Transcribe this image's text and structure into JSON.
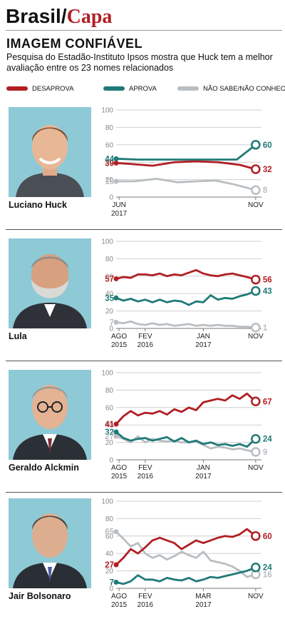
{
  "header": {
    "brand": "Brasil",
    "slash": "/",
    "section": "Capa"
  },
  "title": "IMAGEM CONFIÁVEL",
  "subtitle": "Pesquisa do Estadão-Instituto Ipsos mostra que Huck tem a melhor avaliação entre os 23 nomes relacionados",
  "colors": {
    "desaprova": "#b01f24",
    "aprova": "#1f7a78",
    "nao_sabe": "#b9bec2",
    "photo_bg": "#8ec9d6"
  },
  "legend": [
    {
      "label": "DESAPROVA",
      "color": "#b01f24"
    },
    {
      "label": "APROVA",
      "color": "#1f7a78"
    },
    {
      "label": "NÃO SABE/NÃO CONHECE",
      "color": "#b9bec2"
    }
  ],
  "chart_data": [
    {
      "type": "line",
      "person": "Luciano Huck",
      "ylim": [
        0,
        100
      ],
      "y_ticks": [
        "0",
        "20",
        "40",
        "60",
        "80",
        "100"
      ],
      "x_ticks": [
        {
          "pos": 0.02,
          "lines": [
            "JUN",
            "2017"
          ]
        },
        {
          "pos": 0.96,
          "lines": [
            "NOV"
          ]
        }
      ],
      "series": [
        {
          "name": "DESAPROVA",
          "color": "#b01f24",
          "x": [
            0,
            0.1,
            0.25,
            0.4,
            0.55,
            0.7,
            0.85,
            0.96
          ],
          "values": [
            39,
            38,
            36,
            40,
            41,
            40,
            37,
            32
          ],
          "start_label": "39",
          "end_label": "32"
        },
        {
          "name": "APROVA",
          "color": "#1f7a78",
          "x": [
            0,
            0.15,
            0.3,
            0.45,
            0.6,
            0.75,
            0.83,
            0.96
          ],
          "values": [
            44,
            43,
            43,
            43,
            43,
            43,
            43,
            60
          ],
          "start_label": "44",
          "end_label": "60"
        },
        {
          "name": "NÃO SABE/NÃO CONHECE",
          "color": "#b9bec2",
          "x": [
            0,
            0.12,
            0.28,
            0.42,
            0.55,
            0.68,
            0.8,
            0.96
          ],
          "values": [
            18,
            18,
            21,
            17,
            18,
            19,
            15,
            8
          ],
          "start_label": "18",
          "end_label": "8"
        }
      ]
    },
    {
      "type": "line",
      "person": "Lula",
      "ylim": [
        0,
        100
      ],
      "y_ticks": [
        "0",
        "20",
        "40",
        "60",
        "80",
        "100"
      ],
      "x_ticks": [
        {
          "pos": 0.02,
          "lines": [
            "AGO",
            "2015"
          ]
        },
        {
          "pos": 0.2,
          "lines": [
            "FEV",
            "2016"
          ]
        },
        {
          "pos": 0.6,
          "lines": [
            "JAN",
            "2017"
          ]
        },
        {
          "pos": 0.96,
          "lines": [
            "NOV"
          ]
        }
      ],
      "series": [
        {
          "name": "DESAPROVA",
          "color": "#b01f24",
          "x": [
            0,
            0.05,
            0.1,
            0.15,
            0.2,
            0.25,
            0.3,
            0.35,
            0.4,
            0.45,
            0.5,
            0.55,
            0.6,
            0.65,
            0.7,
            0.75,
            0.8,
            0.85,
            0.9,
            0.96
          ],
          "values": [
            57,
            59,
            58,
            62,
            62,
            61,
            63,
            60,
            62,
            61,
            64,
            67,
            63,
            61,
            60,
            62,
            63,
            61,
            59,
            56
          ],
          "start_label": "57",
          "end_label": "56"
        },
        {
          "name": "APROVA",
          "color": "#1f7a78",
          "x": [
            0,
            0.05,
            0.1,
            0.15,
            0.2,
            0.25,
            0.3,
            0.35,
            0.4,
            0.45,
            0.5,
            0.55,
            0.6,
            0.65,
            0.7,
            0.75,
            0.8,
            0.85,
            0.9,
            0.96
          ],
          "values": [
            35,
            32,
            34,
            31,
            33,
            30,
            33,
            30,
            32,
            31,
            27,
            31,
            30,
            38,
            33,
            35,
            34,
            37,
            39,
            43
          ],
          "start_label": "35",
          "end_label": "43"
        },
        {
          "name": "NÃO SABE/NÃO CONHECE",
          "color": "#b9bec2",
          "x": [
            0,
            0.05,
            0.1,
            0.15,
            0.2,
            0.25,
            0.3,
            0.35,
            0.4,
            0.45,
            0.5,
            0.55,
            0.6,
            0.65,
            0.7,
            0.75,
            0.8,
            0.85,
            0.9,
            0.96
          ],
          "values": [
            7,
            6,
            8,
            5,
            4,
            6,
            4,
            5,
            3,
            4,
            5,
            3,
            4,
            3,
            4,
            3,
            3,
            2,
            2,
            1
          ],
          "start_label": "7",
          "end_label": "1"
        }
      ]
    },
    {
      "type": "line",
      "person": "Geraldo Alckmin",
      "ylim": [
        0,
        100
      ],
      "y_ticks": [
        "0",
        "20",
        "40",
        "60",
        "80",
        "100"
      ],
      "x_ticks": [
        {
          "pos": 0.02,
          "lines": [
            "AGO",
            "2015"
          ]
        },
        {
          "pos": 0.2,
          "lines": [
            "FEV",
            "2016"
          ]
        },
        {
          "pos": 0.6,
          "lines": [
            "JAN",
            "2017"
          ]
        },
        {
          "pos": 0.96,
          "lines": [
            "NOV"
          ]
        }
      ],
      "series": [
        {
          "name": "DESAPROVA",
          "color": "#b01f24",
          "x": [
            0,
            0.05,
            0.1,
            0.15,
            0.2,
            0.25,
            0.3,
            0.35,
            0.4,
            0.45,
            0.5,
            0.55,
            0.6,
            0.65,
            0.7,
            0.75,
            0.8,
            0.85,
            0.9,
            0.96
          ],
          "values": [
            41,
            50,
            56,
            51,
            54,
            53,
            56,
            52,
            58,
            55,
            60,
            57,
            66,
            68,
            70,
            68,
            74,
            70,
            76,
            67
          ],
          "start_label": "41",
          "end_label": "67"
        },
        {
          "name": "APROVA",
          "color": "#1f7a78",
          "x": [
            0,
            0.05,
            0.1,
            0.15,
            0.2,
            0.25,
            0.3,
            0.35,
            0.4,
            0.45,
            0.5,
            0.55,
            0.6,
            0.65,
            0.7,
            0.75,
            0.8,
            0.85,
            0.9,
            0.96
          ],
          "values": [
            32,
            25,
            22,
            24,
            25,
            22,
            24,
            26,
            21,
            25,
            20,
            22,
            18,
            20,
            17,
            18,
            16,
            18,
            15,
            24
          ],
          "start_label": "32",
          "end_label": "24"
        },
        {
          "name": "NÃO SABE/NÃO CONHECE",
          "color": "#b9bec2",
          "x": [
            0,
            0.05,
            0.1,
            0.15,
            0.2,
            0.25,
            0.3,
            0.35,
            0.4,
            0.45,
            0.5,
            0.55,
            0.6,
            0.65,
            0.7,
            0.75,
            0.8,
            0.85,
            0.9,
            0.96
          ],
          "values": [
            27,
            24,
            20,
            27,
            20,
            24,
            22,
            21,
            22,
            20,
            20,
            21,
            17,
            13,
            15,
            14,
            12,
            13,
            11,
            9
          ],
          "start_label": "27",
          "end_label": "9"
        }
      ]
    },
    {
      "type": "line",
      "person": "Jair Bolsonaro",
      "ylim": [
        0,
        100
      ],
      "y_ticks": [
        "0",
        "20",
        "40",
        "60",
        "80",
        "100"
      ],
      "x_ticks": [
        {
          "pos": 0.02,
          "lines": [
            "AGO",
            "2015"
          ]
        },
        {
          "pos": 0.2,
          "lines": [
            "FEV",
            "2016"
          ]
        },
        {
          "pos": 0.6,
          "lines": [
            "MAR",
            "2017"
          ]
        },
        {
          "pos": 0.96,
          "lines": [
            "NOV"
          ]
        }
      ],
      "series": [
        {
          "name": "DESAPROVA",
          "color": "#b01f24",
          "x": [
            0,
            0.05,
            0.1,
            0.15,
            0.2,
            0.25,
            0.3,
            0.35,
            0.4,
            0.45,
            0.5,
            0.55,
            0.6,
            0.65,
            0.7,
            0.75,
            0.8,
            0.85,
            0.9,
            0.96
          ],
          "values": [
            27,
            35,
            45,
            40,
            47,
            55,
            58,
            55,
            52,
            45,
            50,
            55,
            52,
            55,
            58,
            60,
            59,
            62,
            68,
            60
          ],
          "start_label": "27",
          "end_label": "60"
        },
        {
          "name": "APROVA",
          "color": "#1f7a78",
          "x": [
            0,
            0.05,
            0.1,
            0.15,
            0.2,
            0.25,
            0.3,
            0.35,
            0.4,
            0.45,
            0.5,
            0.55,
            0.6,
            0.65,
            0.7,
            0.75,
            0.8,
            0.85,
            0.9,
            0.96
          ],
          "values": [
            7,
            5,
            8,
            15,
            10,
            10,
            8,
            12,
            10,
            9,
            12,
            8,
            10,
            13,
            12,
            14,
            16,
            18,
            20,
            24
          ],
          "start_label": "7",
          "end_label": "24"
        },
        {
          "name": "NÃO SABE/NÃO CONHECE",
          "color": "#b9bec2",
          "x": [
            0,
            0.05,
            0.1,
            0.15,
            0.2,
            0.25,
            0.3,
            0.35,
            0.4,
            0.45,
            0.5,
            0.55,
            0.6,
            0.65,
            0.7,
            0.75,
            0.8,
            0.85,
            0.9,
            0.96
          ],
          "values": [
            65,
            57,
            48,
            52,
            40,
            35,
            38,
            33,
            37,
            42,
            38,
            35,
            42,
            32,
            30,
            28,
            25,
            20,
            13,
            16
          ],
          "start_label": "65",
          "end_label": "16"
        }
      ]
    }
  ]
}
